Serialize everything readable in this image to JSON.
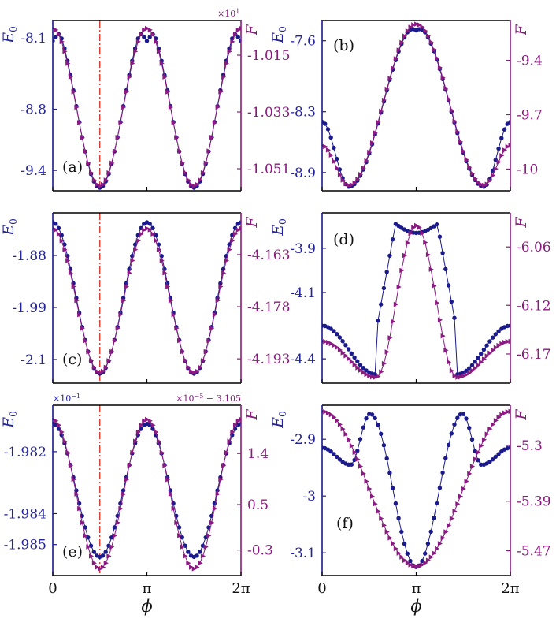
{
  "colors": {
    "E0": "#1a1a8c",
    "F": "#8b1a82",
    "marker_line": "#d9291c"
  },
  "x_axis": {
    "label": "ϕ",
    "ticks": [
      "0",
      "π",
      "2π"
    ],
    "range": [
      0,
      6.2832
    ]
  },
  "chart_data": [
    {
      "type": "line",
      "panel": "(a)",
      "x_range": [
        0,
        6.2832
      ],
      "left_axis": {
        "label": "E0",
        "ticks": [
          -8.1,
          -8.8,
          -9.4
        ],
        "ylim": [
          -9.6,
          -7.93
        ]
      },
      "right_axis": {
        "label": "F",
        "ticks": [
          -1.015,
          -1.033,
          -1.051
        ],
        "multiplier": "×10^1",
        "ylim": [
          -1.058,
          -1.004
        ]
      },
      "vertical_line_x": 1.5708,
      "series": [
        {
          "name": "E0",
          "axis": "left",
          "marker": "circle",
          "shape": "shoulder",
          "min": -9.57,
          "max": -7.97,
          "min_at": [
            1.5708,
            4.7124
          ],
          "max_at": [
            0,
            3.1416,
            6.2832
          ],
          "tip_dip": 0.1,
          "tip_width": 0.3
        },
        {
          "name": "F",
          "axis": "right",
          "marker": "triangle",
          "shape": "cos2",
          "min": -1.0565,
          "max": -1.0065,
          "min_at": [
            1.5708,
            4.7124
          ],
          "max_at": [
            0,
            3.1416,
            6.2832
          ]
        }
      ]
    },
    {
      "type": "line",
      "panel": "(b)",
      "x_range": [
        0,
        6.2832
      ],
      "left_axis": {
        "label": "E0",
        "ticks": [
          -7.6,
          -8.3,
          -8.9
        ],
        "ylim": [
          -9.08,
          -7.4
        ]
      },
      "right_axis": {
        "label": "F",
        "ticks": [
          -9.4,
          -9.7,
          -10.0
        ],
        "ylim": [
          -10.12,
          -9.18
        ]
      },
      "series": [
        {
          "name": "E0",
          "axis": "left",
          "marker": "circle",
          "shape": "single-wide",
          "min": -9.04,
          "max": -7.45,
          "min_at": [
            0.9,
            5.4
          ],
          "max_at": [
            3.1416
          ],
          "end_value": -8.4,
          "tip_dip": 0.03,
          "tip_width": 0.25
        },
        {
          "name": "F",
          "axis": "right",
          "marker": "triangle",
          "shape": "single-wide",
          "min": -10.09,
          "max": -9.2,
          "min_at": [
            0.9,
            5.4
          ],
          "max_at": [
            3.1416
          ],
          "end_value": -9.87
        }
      ]
    },
    {
      "type": "line",
      "panel": "(c)",
      "x_range": [
        0,
        6.2832
      ],
      "left_axis": {
        "label": "E0",
        "ticks": [
          -1.88,
          -1.99,
          -2.1
        ],
        "ylim": [
          -2.15,
          -1.79
        ]
      },
      "right_axis": {
        "label": "F",
        "ticks": [
          -4.163,
          -4.178,
          -4.193
        ],
        "ylim": [
          -4.2,
          -4.151
        ]
      },
      "vertical_line_x": 1.5708,
      "series": [
        {
          "name": "E0",
          "axis": "left",
          "marker": "circle",
          "shape": "cos2",
          "min": -2.13,
          "max": -1.81,
          "min_at": [
            1.5708,
            4.7124
          ],
          "max_at": [
            0,
            3.1416,
            6.2832
          ]
        },
        {
          "name": "F",
          "axis": "right",
          "marker": "triangle",
          "shape": "cos2",
          "min": -4.197,
          "max": -4.1555,
          "min_at": [
            1.5708,
            4.7124
          ],
          "max_at": [
            0,
            3.1416,
            6.2832
          ]
        }
      ]
    },
    {
      "type": "line",
      "panel": "(d)",
      "x_range": [
        0,
        6.2832
      ],
      "left_axis": {
        "label": "E0",
        "ticks": [
          -3.9,
          -4.1,
          -4.4
        ],
        "ylim": [
          -4.51,
          -3.74
        ]
      },
      "right_axis": {
        "label": "F",
        "ticks": [
          -6.06,
          -6.12,
          -6.17
        ],
        "ylim": [
          -6.2,
          -6.025
        ]
      },
      "series": [
        {
          "name": "E0",
          "axis": "left",
          "marker": "circle",
          "shape": "plateau",
          "min": -4.47,
          "max": -3.79,
          "min_at": [
            1.8,
            4.5
          ],
          "max_at": [
            3.1416
          ],
          "end_value": -4.25,
          "plateau": [
            2.45,
            3.85
          ],
          "tip_dip": 0.06
        },
        {
          "name": "F",
          "axis": "right",
          "marker": "triangle",
          "shape": "single-wide",
          "min": -6.194,
          "max": -6.038,
          "min_at": [
            1.8,
            4.5
          ],
          "max_at": [
            3.1416
          ],
          "end_value": -6.157
        }
      ]
    },
    {
      "type": "line",
      "panel": "(e)",
      "x_range": [
        0,
        6.2832
      ],
      "left_axis": {
        "label": "E0",
        "ticks": [
          -1.982,
          -1.984,
          -1.985
        ],
        "multiplier": "×10^-1",
        "ylim": [
          -1.986,
          -1.9805
        ]
      },
      "right_axis": {
        "label": "F",
        "ticks": [
          1.4,
          0.5,
          -0.3
        ],
        "multiplier": "×10^-5 − 3.105",
        "ylim": [
          -0.75,
          2.25
        ]
      },
      "vertical_line_x": 1.5708,
      "series": [
        {
          "name": "E0",
          "axis": "left",
          "marker": "circle",
          "shape": "cos2",
          "min": -1.9854,
          "max": -1.9811,
          "min_at": [
            1.5708,
            4.7124
          ],
          "max_at": [
            0,
            3.1416,
            6.2832
          ]
        },
        {
          "name": "F",
          "axis": "right",
          "marker": "triangle",
          "shape": "cos2",
          "min": -0.63,
          "max": 2.0,
          "min_at": [
            1.5708,
            4.7124
          ],
          "max_at": [
            0,
            3.1416,
            6.2832
          ]
        }
      ]
    },
    {
      "type": "line",
      "panel": "(f)",
      "x_range": [
        0,
        6.2832
      ],
      "left_axis": {
        "label": "E0",
        "ticks": [
          -2.9,
          -3.0,
          -3.1
        ],
        "ylim": [
          -3.14,
          -2.84
        ]
      },
      "right_axis": {
        "label": "F",
        "ticks": [
          -5.3,
          -5.39,
          -5.47
        ],
        "ylim": [
          -5.51,
          -5.235
        ]
      },
      "series": [
        {
          "name": "E0",
          "axis": "left",
          "marker": "circle",
          "shape": "w-shape",
          "min": -3.125,
          "max": -2.855,
          "min_at": [
            3.1416
          ],
          "max_at": [
            1.6,
            4.68
          ],
          "end_value": -2.915,
          "side_min": -2.945,
          "side_min_at": [
            0.95,
            5.33
          ]
        },
        {
          "name": "F",
          "axis": "right",
          "marker": "triangle",
          "shape": "single-wide-inv",
          "min": -5.495,
          "max": -5.245,
          "min_at": [
            3.1416
          ],
          "max_at": [
            0,
            6.2832
          ]
        }
      ]
    }
  ],
  "texts": {
    "ylabel_left": "E",
    "ylabel_left_sub": "0",
    "ylabel_right": "F",
    "mult_a_right": "×10",
    "mult_a_right_exp": "1",
    "mult_e_left": "×10",
    "mult_e_left_exp": "−1",
    "mult_e_right": "×10",
    "mult_e_right_exp": "−5",
    "mult_e_right_tail": " − 3.105"
  }
}
